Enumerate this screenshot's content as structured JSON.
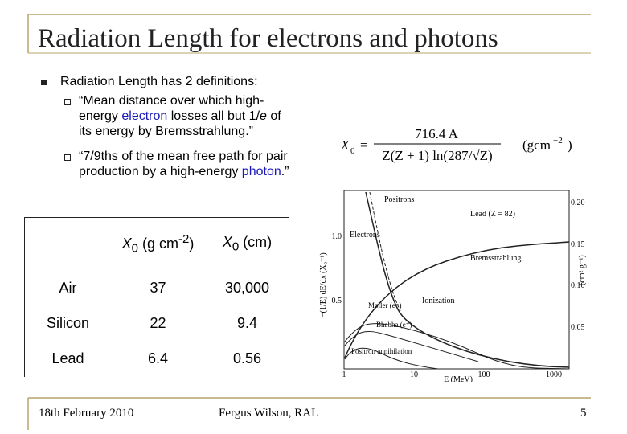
{
  "title": "Radiation Length for electrons and photons",
  "bullets": {
    "main": "Radiation Length has 2 definitions:",
    "sub": [
      [
        "“Mean distance over which high-energy ",
        "electron",
        " losses all but 1/",
        "e",
        " of its energy by Bremsstrahlung.”"
      ],
      [
        "“7/9ths of the mean free path for pair production by a high-energy ",
        "photon",
        ".”"
      ]
    ]
  },
  "formula": {
    "lhs": "X",
    "lhs_sub": "0",
    "eq": "=",
    "numerator": "716.4 A",
    "denominator": "Z(Z + 1) ln(287/√Z)",
    "unit": "(gcm",
    "unit_exp": "−2",
    "unit_end": ")"
  },
  "table": {
    "header": [
      {
        "main": "X",
        "sub": "0",
        "text": " (g cm",
        "sup": "-2",
        "end": ")"
      },
      {
        "main": "X",
        "sub": "0",
        "text": " (cm)"
      }
    ],
    "rows": [
      [
        "Air",
        "37",
        "30,000"
      ],
      [
        "Silicon",
        "22",
        "9.4"
      ],
      [
        "Lead",
        "6.4",
        "0.56"
      ]
    ]
  },
  "figure": {
    "labels": {
      "positrons": "Positrons",
      "lead": "Lead (Z = 82)",
      "electrons": "Electrons",
      "brems": "Bremsstrahlung",
      "ionization": "Ionization",
      "moller": "Møller (e⁻)",
      "bhabha": "Bhabha (e⁺)",
      "annihilation": "Positron annihilation"
    },
    "x_label": "E (MeV)",
    "y_label": "−(1/E) dE/dx (X₀⁻¹)",
    "y2_label": "(cm² g⁻¹)",
    "xticks": [
      "1",
      "10",
      "100",
      "1000"
    ],
    "yticks": [
      "1.0",
      "0.5"
    ],
    "y2ticks": [
      "0.20",
      "0.15",
      "0.10",
      "0.05"
    ]
  },
  "footer": {
    "date": "18th February 2010",
    "author": "Fergus Wilson, RAL",
    "page": "5"
  }
}
